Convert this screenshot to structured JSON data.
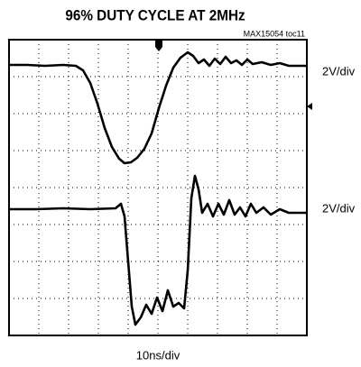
{
  "figure": {
    "title": "96% DUTY CYCLE AT 2MHz",
    "code": "MAX15054 toc11",
    "channels": [
      {
        "scale": "2V/div"
      },
      {
        "scale": "2V/div"
      }
    ],
    "timebase": "10ns/div"
  }
}
